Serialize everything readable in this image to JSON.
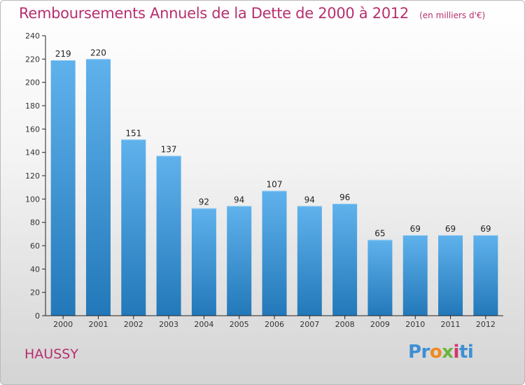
{
  "header": {
    "title": "Remboursements Annuels de la Dette de 2000 à 2012",
    "subtitle": "(en milliers d'€)"
  },
  "commune": "HAUSSY",
  "logo": {
    "text": "Proxiti"
  },
  "colors": {
    "title": "#b72f6e",
    "bar_light": "#5fb2ec",
    "bar_dark": "#2378b9",
    "axis": "#222222"
  },
  "chart_data": {
    "type": "bar",
    "categories": [
      "2000",
      "2001",
      "2002",
      "2003",
      "2004",
      "2005",
      "2006",
      "2007",
      "2008",
      "2009",
      "2010",
      "2011",
      "2012"
    ],
    "values": [
      219,
      220,
      151,
      137,
      92,
      94,
      107,
      94,
      96,
      65,
      69,
      69,
      69
    ],
    "title": "Remboursements Annuels de la Dette de 2000 à 2012",
    "xlabel": "",
    "ylabel": "",
    "ylim": [
      0,
      240
    ],
    "yticks": [
      0,
      20,
      40,
      60,
      80,
      100,
      120,
      140,
      160,
      180,
      200,
      220,
      240
    ],
    "grid": false,
    "data_labels": true
  }
}
